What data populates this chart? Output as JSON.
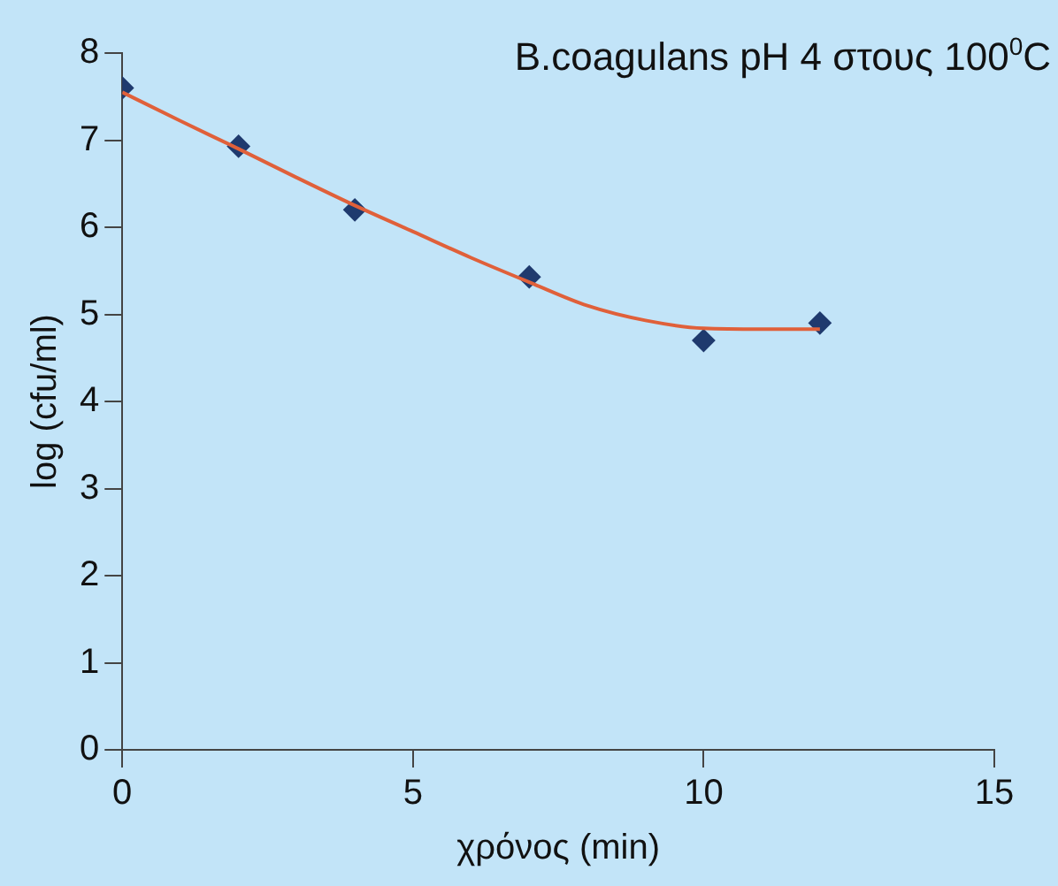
{
  "chart_data": {
    "type": "scatter",
    "title": "B.coagulans pH 4 στους 100$^{0}$C",
    "xlabel": "χρόνος (min)",
    "ylabel": "log (cfu/ml)",
    "xlim": [
      0,
      15
    ],
    "xticks": [
      0,
      5,
      10,
      15
    ],
    "ylim": [
      0,
      8
    ],
    "yticks": [
      0,
      1,
      2,
      3,
      4,
      5,
      6,
      7,
      8
    ],
    "grid": false,
    "legend": false,
    "series": [
      {
        "marker": "diamond",
        "color": "#1f3a6e",
        "x": [
          0,
          2,
          4,
          7,
          10,
          12
        ],
        "values": [
          7.6,
          6.93,
          6.2,
          5.43,
          4.7,
          4.9
        ]
      },
      {
        "type": "line",
        "marker": "none",
        "color": "#e0603a",
        "x": [
          0,
          1,
          2,
          3,
          4,
          5,
          6,
          7,
          8,
          9,
          10,
          11,
          12
        ],
        "values": [
          7.55,
          7.22,
          6.9,
          6.57,
          6.25,
          5.95,
          5.65,
          5.37,
          5.1,
          4.93,
          4.84,
          4.83,
          4.83
        ]
      }
    ]
  }
}
